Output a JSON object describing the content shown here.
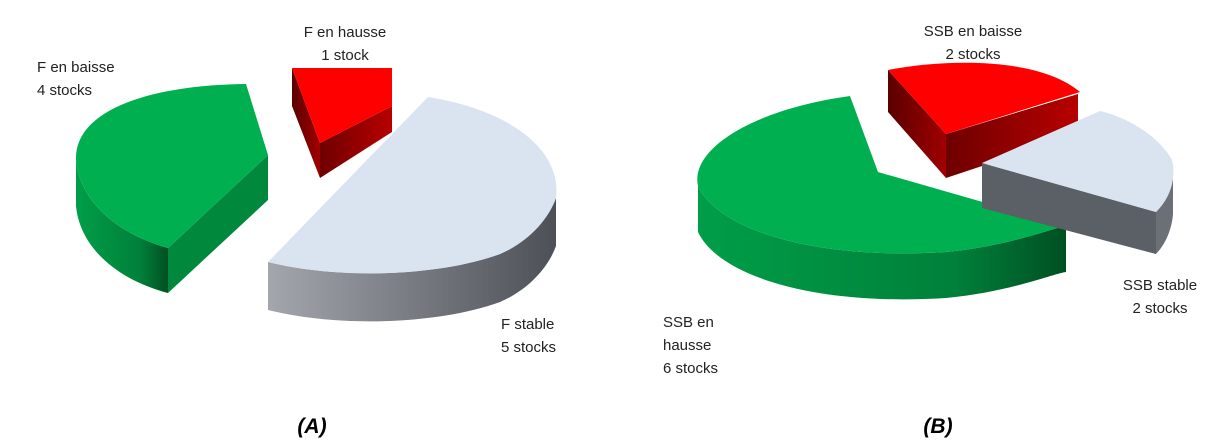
{
  "chart_data": [
    {
      "type": "pie",
      "title": "",
      "caption": "(A)",
      "slices": [
        {
          "name": "F en hausse",
          "count_label": "1 stock",
          "value": 1,
          "color": "#ff0000"
        },
        {
          "name": "F stable",
          "count_label": "5 stocks",
          "value": 5,
          "color": "#dae3f0"
        },
        {
          "name": "F en baisse",
          "count_label": "4 stocks",
          "value": 4,
          "color": "#00b050"
        }
      ],
      "exploded": true,
      "three_d": true
    },
    {
      "type": "pie",
      "title": "",
      "caption": "(B)",
      "slices": [
        {
          "name": "SSB en baisse",
          "count_label": "2 stocks",
          "value": 2,
          "color": "#ff0000"
        },
        {
          "name": "SSB stable",
          "count_label": "2 stocks",
          "value": 2,
          "color": "#dae3f0"
        },
        {
          "name": "SSB en hausse",
          "count_label": "6 stocks",
          "value": 6,
          "color": "#00b050"
        }
      ],
      "exploded": true,
      "three_d": true
    }
  ]
}
